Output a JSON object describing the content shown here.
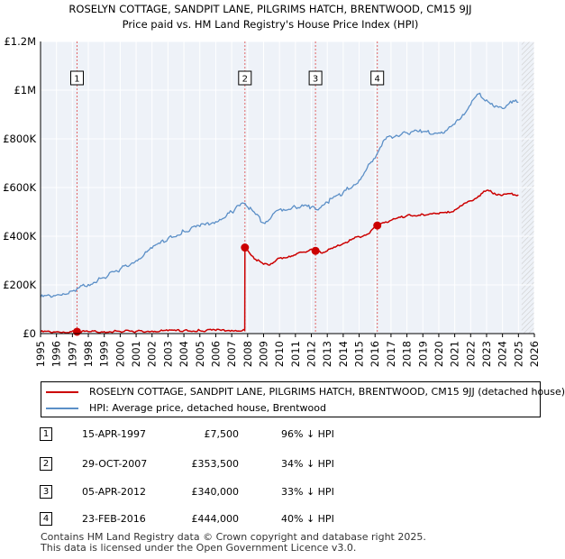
{
  "chart_data": {
    "type": "line",
    "title": "ROSELYN COTTAGE, SANDPIT LANE, PILGRIMS HATCH, BRENTWOOD, CM15 9JJ",
    "subtitle": "Price paid vs. HM Land Registry's House Price Index (HPI)",
    "xlim": [
      1995,
      2026
    ],
    "ylim": [
      0,
      1200000
    ],
    "x_ticks": [
      "1995",
      "1996",
      "1997",
      "1998",
      "1999",
      "2000",
      "2001",
      "2002",
      "2003",
      "2004",
      "2005",
      "2006",
      "2007",
      "2008",
      "2009",
      "2010",
      "2011",
      "2012",
      "2013",
      "2014",
      "2015",
      "2016",
      "2017",
      "2018",
      "2019",
      "2020",
      "2021",
      "2022",
      "2023",
      "2024",
      "2025",
      "2026"
    ],
    "y_ticks": [
      {
        "value": 0,
        "label": "£0"
      },
      {
        "value": 200000,
        "label": "£200K"
      },
      {
        "value": 400000,
        "label": "£400K"
      },
      {
        "value": 600000,
        "label": "£600K"
      },
      {
        "value": 800000,
        "label": "£800K"
      },
      {
        "value": 1000000,
        "label": "£1M"
      },
      {
        "value": 1200000,
        "label": "£1.2M"
      }
    ],
    "grid": true,
    "future_hatch_from": 2025.2,
    "series": [
      {
        "name": "ROSELYN COTTAGE, SANDPIT LANE, PILGRIMS HATCH, BRENTWOOD, CM15 9JJ (detached house)",
        "color": "#cc0000",
        "x": [
          1995,
          1996,
          1997.29,
          1998,
          1999,
          2000,
          2001,
          2002,
          2003,
          2004,
          2005,
          2006,
          2007,
          2007.82,
          2007.83,
          2008,
          2008.5,
          2009,
          2009.3,
          2009.8,
          2010,
          2010.6,
          2011,
          2011.5,
          2012,
          2012.26,
          2012.6,
          2013,
          2013.5,
          2014,
          2014.5,
          2015,
          2015.5,
          2016.14,
          2016.5,
          2017,
          2018,
          2019,
          2020,
          2020.5,
          2021,
          2021.5,
          2022,
          2022.5,
          2023,
          2023.5,
          2024,
          2024.5,
          2025
        ],
        "y": [
          7200,
          7300,
          7500,
          7700,
          8100,
          8600,
          9200,
          10300,
          11400,
          12200,
          12400,
          12700,
          13300,
          13700,
          353500,
          342000,
          305000,
          285000,
          282000,
          302000,
          310000,
          318000,
          323000,
          335000,
          347000,
          340000,
          332000,
          340000,
          355000,
          370000,
          385000,
          398000,
          408000,
          444000,
          456000,
          465000,
          485000,
          490000,
          492000,
          496000,
          508000,
          528000,
          545000,
          565000,
          588000,
          577000,
          568000,
          575000,
          570000
        ]
      },
      {
        "name": "HPI: Average price, detached house, Brentwood",
        "color": "#5b8fc7",
        "x": [
          1995,
          1996,
          1997,
          1997.29,
          1998,
          1999,
          2000,
          2001,
          2002,
          2003,
          2004,
          2005,
          2006,
          2007,
          2007.5,
          2007.83,
          2008,
          2008.5,
          2009,
          2009.5,
          2010,
          2011,
          2012,
          2012.26,
          2013,
          2014,
          2015,
          2015.5,
          2016,
          2016.14,
          2016.5,
          2017,
          2018,
          2019,
          2020,
          2020.5,
          2021,
          2021.5,
          2022,
          2022.5,
          2023,
          2023.5,
          2024,
          2024.5,
          2025
        ],
        "y": [
          150000,
          158000,
          175000,
          185000,
          202000,
          230000,
          265000,
          300000,
          350000,
          390000,
          420000,
          440000,
          460000,
          500000,
          525000,
          535000,
          520000,
          490000,
          455000,
          480000,
          510000,
          520000,
          520000,
          510000,
          540000,
          580000,
          630000,
          680000,
          720000,
          740000,
          790000,
          810000,
          825000,
          830000,
          825000,
          835000,
          860000,
          900000,
          940000,
          985000,
          960000,
          930000,
          925000,
          955000,
          950000
        ]
      }
    ],
    "sale_markers": [
      {
        "label": "1",
        "x": 1997.29,
        "y": 7500
      },
      {
        "label": "2",
        "x": 2007.83,
        "y": 353500
      },
      {
        "label": "3",
        "x": 2012.26,
        "y": 340000
      },
      {
        "label": "4",
        "x": 2016.14,
        "y": 444000
      }
    ]
  },
  "legend": {
    "property_label": "ROSELYN COTTAGE, SANDPIT LANE, PILGRIMS HATCH, BRENTWOOD, CM15 9JJ (detached house)",
    "hpi_label": "HPI: Average price, detached house, Brentwood"
  },
  "transactions": [
    {
      "num": "1",
      "date": "15-APR-1997",
      "price": "£7,500",
      "hpi": "96% ↓ HPI"
    },
    {
      "num": "2",
      "date": "29-OCT-2007",
      "price": "£353,500",
      "hpi": "34% ↓ HPI"
    },
    {
      "num": "3",
      "date": "05-APR-2012",
      "price": "£340,000",
      "hpi": "33% ↓ HPI"
    },
    {
      "num": "4",
      "date": "23-FEB-2016",
      "price": "£444,000",
      "hpi": "40% ↓ HPI"
    }
  ],
  "footer": {
    "line1": "Contains HM Land Registry data © Crown copyright and database right 2025.",
    "line2": "This data is licensed under the Open Government Licence v3.0."
  }
}
